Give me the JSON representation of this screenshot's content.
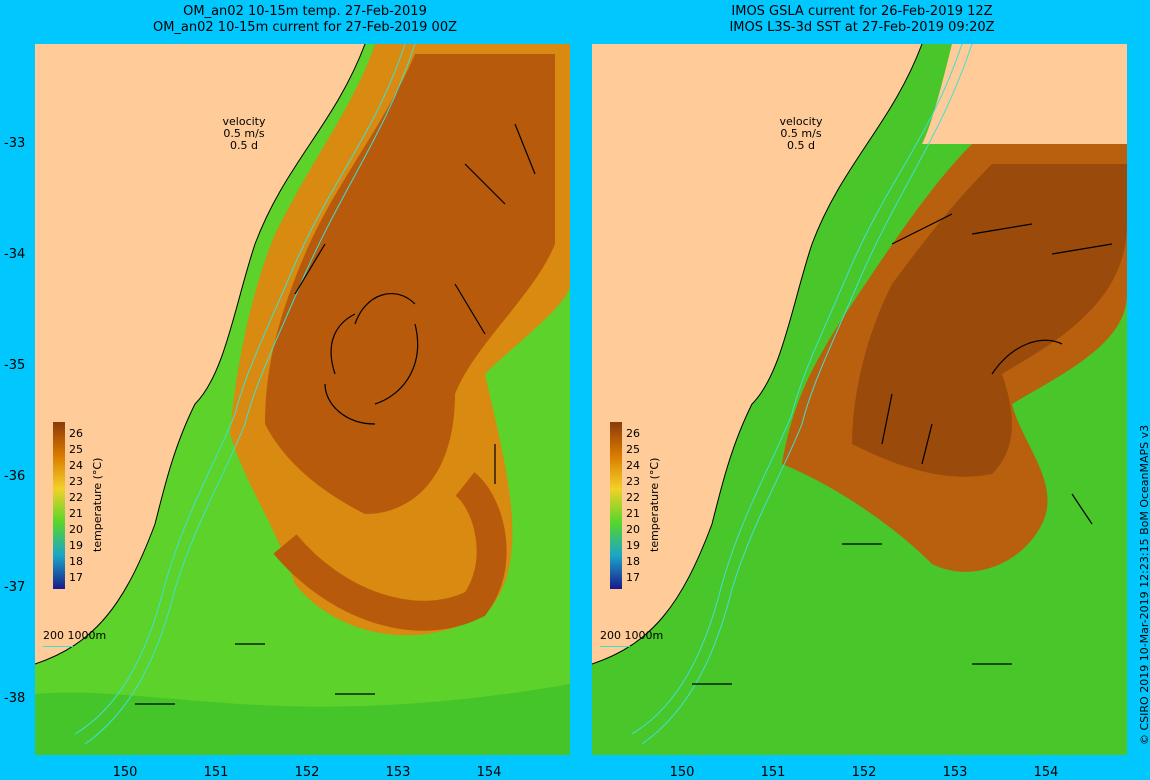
{
  "left_panel": {
    "title_line1": "OM_an02 10-15m temp. 27-Feb-2019",
    "title_line2": "OM_an02 10-15m current for 27-Feb-2019 00Z",
    "velocity_key": {
      "label": "velocity",
      "speed": "0.5 m/s",
      "duration": "0.5 d"
    },
    "depth_key": "200   1000m"
  },
  "right_panel": {
    "title_line1": "IMOS GSLA current for 26-Feb-2019 12Z",
    "title_line2": "IMOS L3S-3d SST at 27-Feb-2019 09:20Z",
    "velocity_key": {
      "label": "velocity",
      "speed": "0.5 m/s",
      "duration": "0.5 d"
    },
    "depth_key": "200   1000m"
  },
  "axes": {
    "lat_ticks": [
      "-33",
      "-34",
      "-35",
      "-36",
      "-37",
      "-38"
    ],
    "lon_ticks": [
      "150",
      "151",
      "152",
      "153",
      "154"
    ]
  },
  "colorbar": {
    "unit": "temperature (°C)",
    "labels": [
      "26",
      "25",
      "24",
      "23",
      "22",
      "21",
      "20",
      "19",
      "18",
      "17"
    ],
    "colors": [
      "#8b3a0a",
      "#b8560a",
      "#d97a00",
      "#e8a400",
      "#f2d12a",
      "#c8e62a",
      "#58d62a",
      "#23b83a",
      "#1aa6c8",
      "#1a4cd0",
      "#1a1a8c"
    ]
  },
  "credit": "© CSIRO 2019   10-Mar-2019 12:23:15 BoM OceanMAPS v3",
  "colors": {
    "land": "#ffcc99",
    "background": "#00c8ff",
    "warm": "#c06010",
    "isobath": "#40e0d0"
  }
}
